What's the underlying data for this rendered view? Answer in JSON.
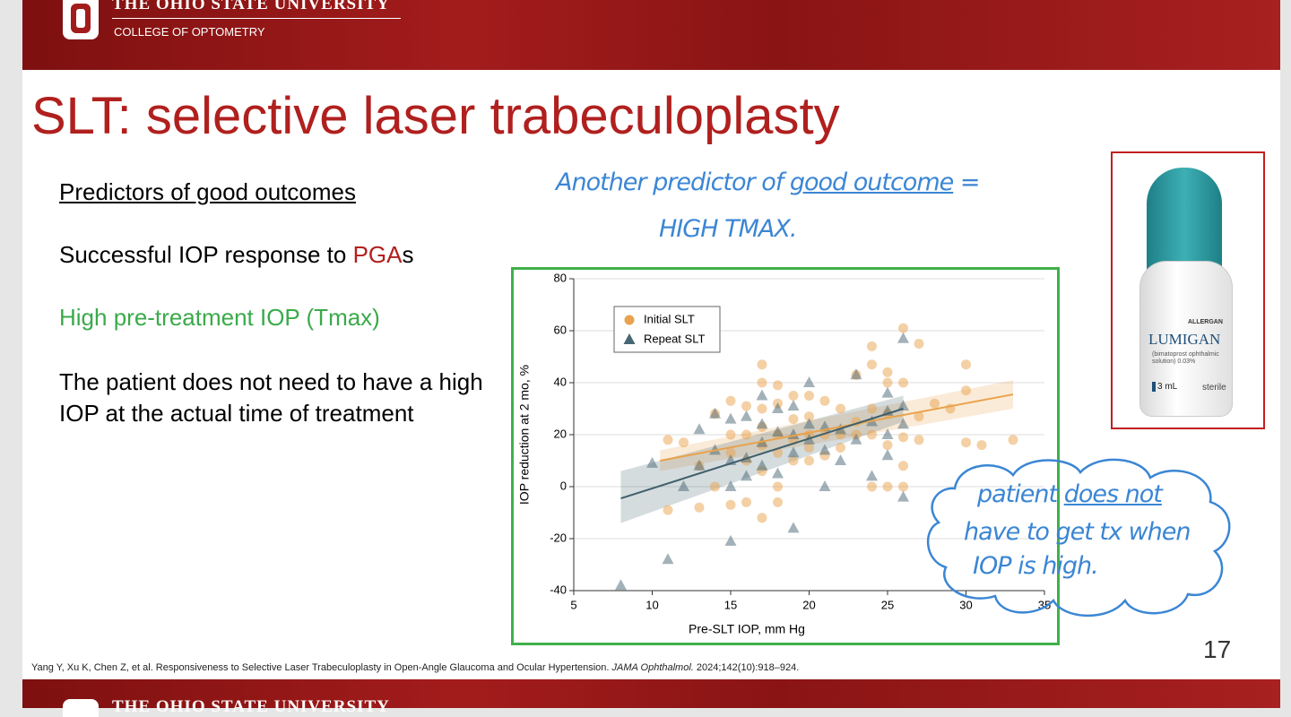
{
  "header": {
    "university": "THE OHIO STATE UNIVERSITY",
    "college": "COLLEGE OF OPTOMETRY"
  },
  "slide": {
    "title": "SLT: selective laser trabeculoplasty",
    "subtitle": "Predictors of good outcomes",
    "bullet1": {
      "before": "Successful IOP response to ",
      "highlight": "PGA",
      "after": "s"
    },
    "bullet2": "High pre-treatment IOP (Tmax)",
    "bullet3": "The patient does not need to have a high IOP at the actual time of treatment"
  },
  "annotations": {
    "top_line1": "Another predictor of",
    "top_underlined": "good outcome",
    "top_eq": "=",
    "top_line2": "HIGH TMAX.",
    "cloud_line1": "patient",
    "cloud_underlined": "does not",
    "cloud_line2": "have to get tx when",
    "cloud_line3": "IOP is high."
  },
  "product": {
    "brand": "LUMIGAN",
    "maker": "ALLERGAN",
    "description": "(bimatoprost ophthalmic solution) 0.03%",
    "volume": "3 mL",
    "sterile": "sterile"
  },
  "chart_data": {
    "type": "scatter",
    "xlabel": "Pre-SLT IOP, mm Hg",
    "ylabel": "IOP reduction at 2 mo, %",
    "xlim": [
      5,
      35
    ],
    "ylim": [
      -40,
      80
    ],
    "xticks": [
      5,
      10,
      15,
      20,
      25,
      30,
      35
    ],
    "yticks": [
      -40,
      -20,
      0,
      20,
      40,
      60,
      80
    ],
    "grid": true,
    "legend": "upper left",
    "series": [
      {
        "name": "Initial SLT",
        "color": "#e9a24c",
        "marker": "circle",
        "x": [
          11,
          11,
          12,
          13,
          13,
          14,
          14,
          15,
          15,
          15,
          15,
          16,
          16,
          16,
          16,
          17,
          17,
          17,
          17,
          17,
          17,
          17,
          18,
          18,
          18,
          18,
          18,
          18,
          19,
          19,
          19,
          19,
          20,
          20,
          20,
          20,
          20,
          21,
          21,
          21,
          22,
          22,
          22,
          23,
          23,
          23,
          24,
          24,
          24,
          24,
          24,
          25,
          25,
          25,
          25,
          25,
          26,
          26,
          26,
          26,
          26,
          27,
          27,
          27,
          28,
          29,
          30,
          30,
          30,
          31,
          33
        ],
        "values": [
          18,
          -9,
          17,
          -8,
          8,
          0,
          28,
          33,
          20,
          13,
          -7,
          31,
          20,
          10,
          -6,
          47,
          40,
          30,
          23,
          16,
          6,
          -12,
          39,
          32,
          20,
          13,
          0,
          -6,
          35,
          26,
          18,
          10,
          35,
          27,
          20,
          15,
          10,
          33,
          20,
          12,
          30,
          20,
          15,
          43,
          25,
          20,
          54,
          47,
          30,
          20,
          0,
          44,
          40,
          28,
          16,
          0,
          61,
          40,
          19,
          8,
          0,
          55,
          27,
          18,
          32,
          30,
          47,
          37,
          17,
          16,
          18
        ]
      },
      {
        "name": "Repeat SLT",
        "color": "#476673",
        "marker": "triangle",
        "x": [
          8,
          10,
          11,
          12,
          13,
          13,
          14,
          14,
          15,
          15,
          15,
          15,
          16,
          16,
          16,
          17,
          17,
          17,
          17,
          18,
          18,
          18,
          19,
          19,
          19,
          19,
          20,
          20,
          20,
          21,
          21,
          21,
          22,
          22,
          23,
          23,
          24,
          24,
          25,
          25,
          25,
          25,
          26,
          26,
          26,
          26
        ],
        "values": [
          -38,
          9,
          -28,
          0,
          22,
          8,
          28,
          14,
          26,
          10,
          0,
          -21,
          27,
          11,
          4,
          35,
          24,
          17,
          8,
          30,
          21,
          5,
          31,
          20,
          13,
          -16,
          40,
          24,
          18,
          23,
          14,
          0,
          22,
          10,
          43,
          18,
          25,
          4,
          36,
          29,
          20,
          12,
          57,
          31,
          24,
          -4
        ]
      }
    ],
    "fits": [
      {
        "color": "#e9a24c",
        "x": [
          10.5,
          33
        ],
        "values": [
          10,
          35.5
        ],
        "ci_lower": [
          6,
          30
        ],
        "ci_upper": [
          14,
          41
        ]
      },
      {
        "color": "#3f5f6b",
        "x": [
          8,
          26
        ],
        "values": [
          -4.5,
          30
        ],
        "ci_lower": [
          -14,
          25
        ],
        "ci_upper": [
          6,
          35
        ]
      }
    ]
  },
  "citation": {
    "text": "Yang Y, Xu K, Chen Z, et al. Responsiveness to Selective Laser Trabeculoplasty in Open-Angle Glaucoma and Ocular Hypertension.",
    "journal": "JAMA Ophthalmol.",
    "details": "2024;142(10):918–924."
  },
  "page_number": "17",
  "footer": {
    "university": "THE OHIO STATE UNIVERSITY"
  }
}
